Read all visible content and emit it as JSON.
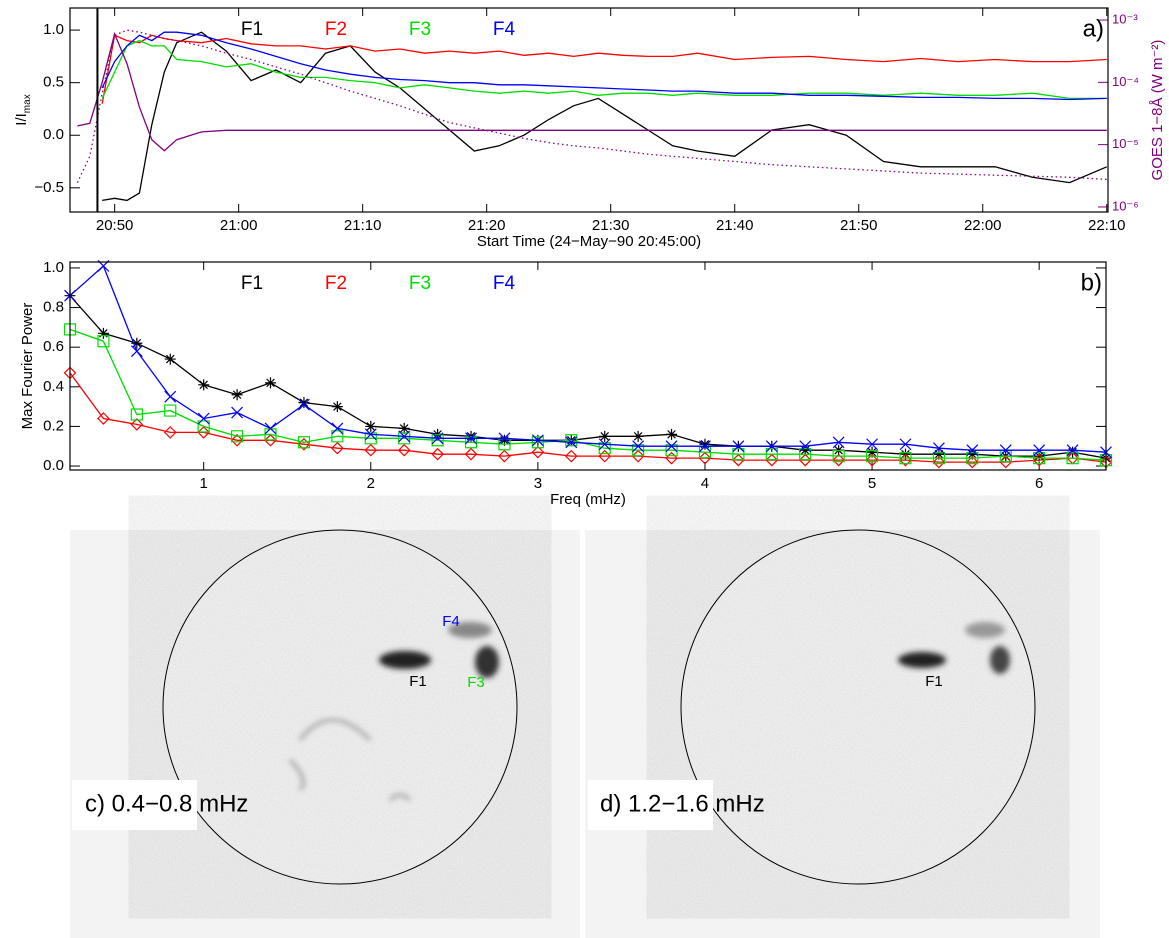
{
  "chart_data": [
    {
      "type": "line",
      "panel_label": "a)",
      "x": [
        2,
        3,
        4,
        5,
        6,
        7,
        8,
        9,
        10,
        12,
        14,
        16,
        18,
        20,
        22,
        24,
        26,
        28,
        30,
        32,
        34,
        36,
        38,
        40,
        42,
        44,
        46,
        48,
        50,
        52,
        55,
        58,
        61,
        64,
        67,
        70,
        73,
        76,
        79,
        82,
        85
      ],
      "xlim": [
        1.4,
        85.1
      ],
      "xticks": [
        {
          "value": 5,
          "label": "20:50"
        },
        {
          "value": 15,
          "label": "21:00"
        },
        {
          "value": 25,
          "label": "21:10"
        },
        {
          "value": 35,
          "label": "21:20"
        },
        {
          "value": 45,
          "label": "21:30"
        },
        {
          "value": 55,
          "label": "21:40"
        },
        {
          "value": 65,
          "label": "21:50"
        },
        {
          "value": 75,
          "label": "22:00"
        },
        {
          "value": 85,
          "label": "22:10"
        }
      ],
      "xlabel": "Start Time (24−May−90 20:45:00)",
      "ylabel": "I/I",
      "ylabel_sub": "max",
      "ylim": [
        -0.73,
        1.21
      ],
      "yticks": [
        {
          "value": -0.5,
          "label": "−0.5"
        },
        {
          "value": 0,
          "label": "0.0"
        },
        {
          "value": 0.5,
          "label": "0.5"
        },
        {
          "value": 1,
          "label": "1.0"
        }
      ],
      "y2log": true,
      "y2lim": [
        8.3e-07,
        0.00156
      ],
      "y2ticks": [
        {
          "value": 1e-06,
          "label": "10⁻⁶"
        },
        {
          "value": 1e-05,
          "label": "10⁻⁵"
        },
        {
          "value": 0.0001,
          "label": "10⁻⁴"
        },
        {
          "value": 0.001,
          "label": "10⁻³"
        }
      ],
      "y2label": "GOES 1−8Å (W m⁻²)",
      "series": [
        {
          "name": "F1",
          "color": "#000000",
          "values": [
            null,
            null,
            -0.62,
            -0.6,
            -0.62,
            -0.55,
            0.1,
            0.6,
            0.88,
            0.98,
            0.8,
            0.52,
            0.62,
            0.5,
            0.78,
            0.85,
            0.6,
            0.45,
            0.25,
            0.05,
            -0.15,
            -0.1,
            0.0,
            0.15,
            0.28,
            0.35,
            0.2,
            0.05,
            -0.1,
            -0.15,
            -0.2,
            0.05,
            0.1,
            0.0,
            -0.25,
            -0.3,
            -0.3,
            -0.3,
            -0.4,
            -0.45,
            -0.3
          ]
        },
        {
          "name": "F2",
          "color": "#ff0000",
          "values": [
            null,
            null,
            0.3,
            0.95,
            0.9,
            0.88,
            0.95,
            0.92,
            0.9,
            0.88,
            0.92,
            0.87,
            0.85,
            0.85,
            0.82,
            0.85,
            0.8,
            0.82,
            0.78,
            0.8,
            0.78,
            0.8,
            0.76,
            0.78,
            0.75,
            0.78,
            0.76,
            0.75,
            0.75,
            0.78,
            0.72,
            0.74,
            0.75,
            0.72,
            0.7,
            0.73,
            0.7,
            0.72,
            0.7,
            0.7,
            0.72
          ]
        },
        {
          "name": "F3",
          "color": "#00dd00",
          "values": [
            null,
            null,
            0.35,
            0.6,
            0.85,
            0.9,
            0.85,
            0.85,
            0.72,
            0.7,
            0.65,
            0.68,
            0.6,
            0.55,
            0.55,
            0.52,
            0.5,
            0.45,
            0.48,
            0.45,
            0.42,
            0.4,
            0.42,
            0.4,
            0.42,
            0.38,
            0.4,
            0.4,
            0.38,
            0.4,
            0.38,
            0.38,
            0.4,
            0.4,
            0.38,
            0.4,
            0.38,
            0.38,
            0.4,
            0.35,
            0.35
          ]
        },
        {
          "name": "F4",
          "color": "#0000ff",
          "values": [
            null,
            null,
            0.45,
            0.7,
            0.85,
            0.95,
            0.9,
            0.98,
            0.98,
            0.95,
            0.88,
            0.82,
            0.75,
            0.68,
            0.62,
            0.58,
            0.55,
            0.53,
            0.52,
            0.5,
            0.5,
            0.48,
            0.48,
            0.47,
            0.46,
            0.45,
            0.44,
            0.43,
            0.42,
            0.42,
            0.4,
            0.4,
            0.38,
            0.38,
            0.37,
            0.36,
            0.36,
            0.35,
            0.35,
            0.34,
            0.35
          ]
        },
        {
          "color": "#800080",
          "axis": "y2",
          "values": [
            2e-05,
            2.2e-05,
            0.0001,
            0.0006,
            0.0002,
            4e-05,
            1.2e-05,
            8e-06,
            1.2e-05,
            1.6e-05,
            1.7e-05,
            1.7e-05,
            1.7e-05,
            1.7e-05,
            1.7e-05,
            1.7e-05,
            1.7e-05,
            1.7e-05,
            1.7e-05,
            1.7e-05,
            1.7e-05,
            1.7e-05,
            1.7e-05,
            1.7e-05,
            1.7e-05,
            1.7e-05,
            1.7e-05,
            1.7e-05,
            1.7e-05,
            1.7e-05,
            1.7e-05,
            1.7e-05,
            1.7e-05,
            1.7e-05,
            1.7e-05,
            1.7e-05,
            1.7e-05,
            1.7e-05,
            1.7e-05,
            1.7e-05,
            1.7e-05
          ]
        },
        {
          "color": "#800080",
          "dash": "dotted",
          "values": [
            -0.45,
            -0.2,
            0.4,
            0.95,
            1.0,
            0.98,
            0.95,
            0.92,
            0.9,
            0.85,
            0.78,
            0.72,
            0.65,
            0.58,
            0.5,
            0.42,
            0.35,
            0.28,
            0.2,
            0.12,
            0.07,
            0.02,
            -0.03,
            -0.07,
            -0.1,
            -0.12,
            -0.15,
            -0.18,
            -0.2,
            -0.22,
            -0.25,
            -0.28,
            -0.3,
            -0.32,
            -0.34,
            -0.36,
            -0.37,
            -0.38,
            -0.39,
            -0.4,
            -0.42
          ]
        }
      ]
    },
    {
      "type": "line",
      "panel_label": "b)",
      "x": [
        0.2,
        0.4,
        0.6,
        0.8,
        1.0,
        1.2,
        1.4,
        1.6,
        1.8,
        2.0,
        2.2,
        2.4,
        2.6,
        2.8,
        3.0,
        3.2,
        3.4,
        3.6,
        3.8,
        4.0,
        4.2,
        4.4,
        4.6,
        4.8,
        5.0,
        5.2,
        5.4,
        5.6,
        5.8,
        6.0,
        6.2,
        6.4
      ],
      "xlim": [
        0.2,
        6.4
      ],
      "xticks": [
        1,
        2,
        3,
        4,
        5,
        6
      ],
      "xlabel": "Freq (mHz)",
      "ylabel": "Max Fourier Power",
      "ylim": [
        -0.02,
        1.03
      ],
      "yticks": [
        {
          "value": 0,
          "label": "0.0"
        },
        {
          "value": 0.2,
          "label": "0.2"
        },
        {
          "value": 0.4,
          "label": "0.4"
        },
        {
          "value": 0.6,
          "label": "0.6"
        },
        {
          "value": 0.8,
          "label": "0.8"
        },
        {
          "value": 1,
          "label": "1.0"
        }
      ],
      "series": [
        {
          "name": "F1",
          "color": "#000000",
          "marker": "asterisk",
          "values": [
            0.86,
            0.67,
            0.62,
            0.54,
            0.41,
            0.36,
            0.42,
            0.32,
            0.3,
            0.2,
            0.19,
            0.16,
            0.15,
            0.13,
            0.13,
            0.13,
            0.15,
            0.15,
            0.16,
            0.11,
            0.1,
            0.1,
            0.08,
            0.08,
            0.07,
            0.06,
            0.06,
            0.06,
            0.05,
            0.05,
            0.07,
            0.04
          ]
        },
        {
          "name": "F2",
          "color": "#ff0000",
          "marker": "diamond",
          "values": [
            0.47,
            0.24,
            0.21,
            0.17,
            0.17,
            0.13,
            0.13,
            0.11,
            0.09,
            0.08,
            0.08,
            0.06,
            0.06,
            0.05,
            0.07,
            0.05,
            0.05,
            0.05,
            0.04,
            0.04,
            0.03,
            0.03,
            0.03,
            0.03,
            0.03,
            0.03,
            0.02,
            0.02,
            0.02,
            0.03,
            0.04,
            0.02
          ]
        },
        {
          "name": "F3",
          "color": "#00dd00",
          "marker": "square",
          "values": [
            0.69,
            0.63,
            0.26,
            0.28,
            0.2,
            0.15,
            0.16,
            0.12,
            0.15,
            0.14,
            0.14,
            0.13,
            0.12,
            0.11,
            0.12,
            0.13,
            0.09,
            0.08,
            0.08,
            0.07,
            0.06,
            0.06,
            0.06,
            0.05,
            0.05,
            0.04,
            0.04,
            0.04,
            0.05,
            0.04,
            0.04,
            0.03
          ]
        },
        {
          "name": "F4",
          "color": "#0000ff",
          "marker": "x",
          "values": [
            0.86,
            1.01,
            0.58,
            0.35,
            0.24,
            0.27,
            0.19,
            0.31,
            0.19,
            0.16,
            0.15,
            0.14,
            0.14,
            0.14,
            0.13,
            0.12,
            0.11,
            0.1,
            0.1,
            0.1,
            0.1,
            0.1,
            0.1,
            0.12,
            0.11,
            0.11,
            0.09,
            0.08,
            0.08,
            0.08,
            0.08,
            0.07
          ]
        }
      ]
    }
  ],
  "images": [
    {
      "label": "c) 0.4−0.8 mHz",
      "annotations": [
        "F1",
        "F4",
        "F3"
      ]
    },
    {
      "label": "d) 1.2−1.6 mHz",
      "annotations": [
        "F1"
      ]
    }
  ]
}
